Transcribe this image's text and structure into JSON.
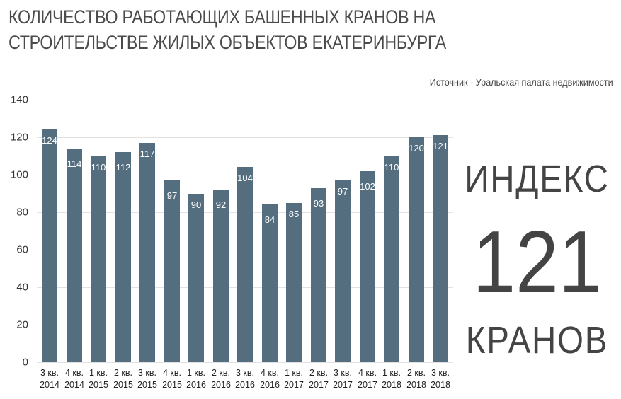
{
  "header": {
    "title_line1": "КОЛИЧЕСТВО РАБОТАЮЩИХ БАШЕННЫХ КРАНОВ НА",
    "title_line2": "СТРОИТЕЛЬСТВЕ ЖИЛЫХ ОБЪЕКТОВ ЕКАТЕРИНБУРГА",
    "source": "Источник - Уральская палата недвижимости"
  },
  "kpi": {
    "label_top": "ИНДЕКС",
    "value": "121",
    "label_bottom": "КРАНОВ"
  },
  "colors": {
    "bar": "#546e7f",
    "text": "#444444",
    "grid": "#e2e2e2"
  },
  "chart_data": {
    "type": "bar",
    "title": "КОЛИЧЕСТВО РАБОТАЮЩИХ БАШЕННЫХ КРАНОВ НА СТРОИТЕЛЬСТВЕ ЖИЛЫХ ОБЪЕКТОВ ЕКАТЕРИНБУРГА",
    "subtitle": "Источник - Уральская палата недвижимости",
    "xlabel": "",
    "ylabel": "",
    "ylim": [
      0,
      140
    ],
    "yticks": [
      0,
      20,
      40,
      60,
      80,
      100,
      120,
      140
    ],
    "grid": true,
    "legend": null,
    "categories": [
      {
        "line1": "3 кв.",
        "line2": "2014"
      },
      {
        "line1": "4 кв.",
        "line2": "2014"
      },
      {
        "line1": "1 кв.",
        "line2": "2015"
      },
      {
        "line1": "2 кв.",
        "line2": "2015"
      },
      {
        "line1": "3 кв.",
        "line2": "2015"
      },
      {
        "line1": "4 кв.",
        "line2": "2015"
      },
      {
        "line1": "1 кв.",
        "line2": "2016"
      },
      {
        "line1": "2 кв.",
        "line2": "2016"
      },
      {
        "line1": "3 кв.",
        "line2": "2016"
      },
      {
        "line1": "4 кв.",
        "line2": "2016"
      },
      {
        "line1": "1 кв.",
        "line2": "2017"
      },
      {
        "line1": "2 кв.",
        "line2": "2017"
      },
      {
        "line1": "3 кв.",
        "line2": "2017"
      },
      {
        "line1": "4 кв.",
        "line2": "2017"
      },
      {
        "line1": "1 кв.",
        "line2": "2018"
      },
      {
        "line1": "2 кв.",
        "line2": "2018"
      },
      {
        "line1": "3 кв.",
        "line2": "2018"
      }
    ],
    "values": [
      124,
      114,
      110,
      112,
      117,
      97,
      90,
      92,
      104,
      84,
      85,
      93,
      97,
      102,
      110,
      120,
      121
    ],
    "annotations": [
      {
        "text": "ИНДЕКС 121 КРАНОВ",
        "position": "right"
      }
    ]
  }
}
